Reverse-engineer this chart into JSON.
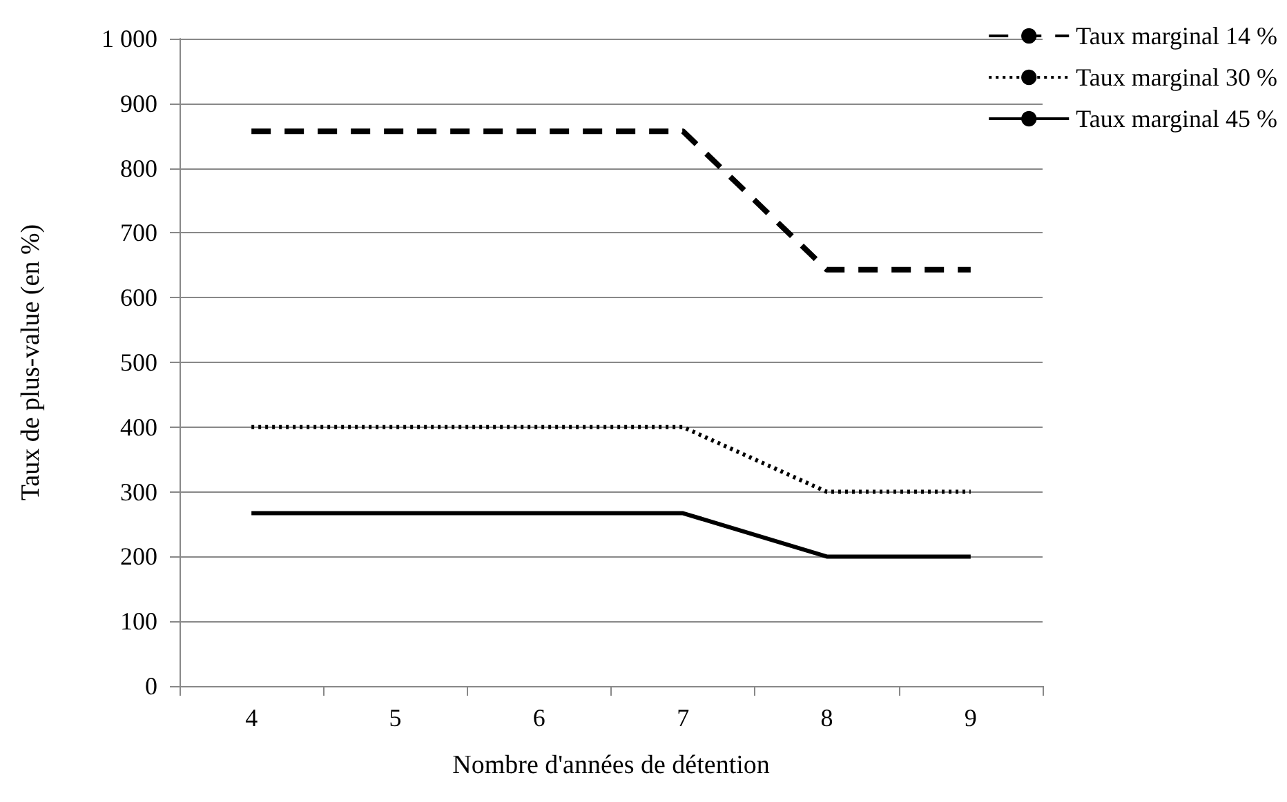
{
  "chart_data": {
    "type": "line",
    "xlabel": "Nombre d'années de détention",
    "ylabel": "Taux de plus-value (en %)",
    "categories": [
      "4",
      "5",
      "6",
      "7",
      "8",
      "9"
    ],
    "series": [
      {
        "name": "Taux marginal 14 %",
        "color": "#000000",
        "line_style": "dashed",
        "values": [
          857,
          857,
          857,
          857,
          643,
          643
        ]
      },
      {
        "name": "Taux marginal 30 %",
        "color": "#000000",
        "line_style": "dotted",
        "values": [
          400,
          400,
          400,
          400,
          300,
          300
        ]
      },
      {
        "name": "Taux marginal 45 %",
        "color": "#000000",
        "line_style": "solid",
        "values": [
          267,
          267,
          267,
          267,
          200,
          200
        ]
      }
    ],
    "ylim": [
      0,
      1000
    ],
    "yticks": [
      0,
      100,
      200,
      300,
      400,
      500,
      600,
      700,
      800,
      900,
      {
        "value": 1000,
        "label": "1 000"
      }
    ],
    "grid": "y",
    "legend": "top right",
    "marker": "none"
  }
}
